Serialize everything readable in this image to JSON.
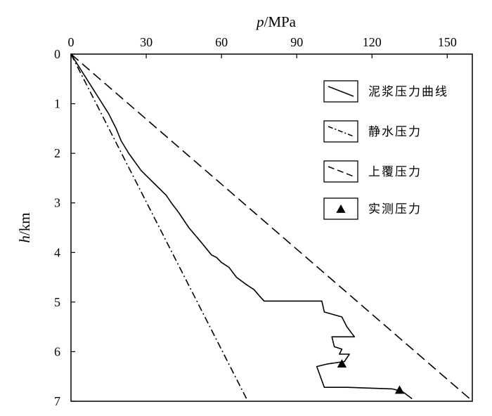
{
  "chart_data": {
    "type": "line",
    "x_axis": {
      "label_var": "p",
      "label_unit": "/MPa",
      "range": [
        0,
        160
      ],
      "ticks": [
        0,
        30,
        60,
        90,
        120,
        150
      ],
      "tick_labels": [
        "0",
        "30",
        "60",
        "90",
        "120",
        "150"
      ],
      "position": "top"
    },
    "y_axis": {
      "label_var": "h",
      "label_unit": "/km",
      "range": [
        0,
        7
      ],
      "inverted": true,
      "ticks": [
        0,
        1,
        2,
        3,
        4,
        5,
        6,
        7
      ],
      "tick_labels": [
        "0",
        "1",
        "2",
        "3",
        "4",
        "5",
        "6",
        "7"
      ]
    },
    "grid": false,
    "legend_position": "top-right",
    "series": [
      {
        "name": "泥浆压力曲线",
        "style": "solid",
        "points": [
          [
            0,
            0
          ],
          [
            5,
            0.4
          ],
          [
            10,
            0.8
          ],
          [
            15,
            1.2
          ],
          [
            18,
            1.5
          ],
          [
            20,
            1.75
          ],
          [
            23,
            2.0
          ],
          [
            28,
            2.35
          ],
          [
            33,
            2.6
          ],
          [
            38,
            2.85
          ],
          [
            40,
            3.0
          ],
          [
            43,
            3.2
          ],
          [
            47,
            3.5
          ],
          [
            52,
            3.8
          ],
          [
            56,
            4.05
          ],
          [
            58,
            4.1
          ],
          [
            60,
            4.2
          ],
          [
            63,
            4.3
          ],
          [
            66,
            4.5
          ],
          [
            70,
            4.65
          ],
          [
            73,
            4.75
          ],
          [
            75,
            4.87
          ],
          [
            77,
            4.98
          ],
          [
            88,
            4.98
          ],
          [
            100,
            4.98
          ],
          [
            101,
            5.2
          ],
          [
            108,
            5.3
          ],
          [
            110,
            5.5
          ],
          [
            113,
            5.7
          ],
          [
            104,
            5.7
          ],
          [
            105,
            5.9
          ],
          [
            108,
            5.95
          ],
          [
            107,
            6.05
          ],
          [
            111,
            6.05
          ],
          [
            109,
            6.2
          ],
          [
            102,
            6.25
          ],
          [
            98,
            6.3
          ],
          [
            101,
            6.72
          ],
          [
            110,
            6.72
          ],
          [
            128,
            6.75
          ],
          [
            132,
            6.8
          ],
          [
            136,
            6.95
          ]
        ]
      },
      {
        "name": "静水压力",
        "style": "dash-dot",
        "points": [
          [
            0,
            0
          ],
          [
            70,
            6.95
          ]
        ]
      },
      {
        "name": "上覆压力",
        "style": "dashed",
        "points": [
          [
            0,
            0
          ],
          [
            159,
            6.95
          ]
        ]
      },
      {
        "name": "实测压力",
        "style": "marker-triangle",
        "points": [
          [
            108,
            6.25
          ],
          [
            131,
            6.78
          ]
        ]
      }
    ]
  }
}
